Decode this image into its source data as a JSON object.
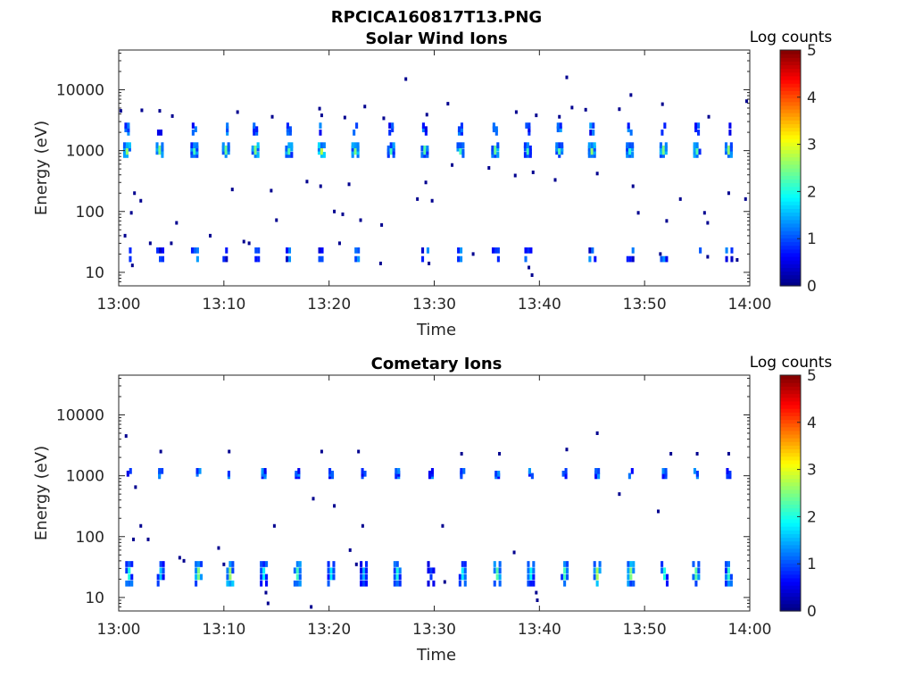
{
  "figure_title": "RPCICA160817T13.PNG",
  "chart_data": [
    {
      "type": "heatmap",
      "title": "Solar Wind Ions",
      "xlabel": "Time",
      "ylabel": "Energy (eV)",
      "x_ticks": [
        "13:00",
        "13:10",
        "13:20",
        "13:30",
        "13:40",
        "13:50",
        "14:00"
      ],
      "x_range_minutes": [
        0,
        60
      ],
      "y_scale": "log",
      "y_ticks": [
        10,
        100,
        1000,
        10000
      ],
      "y_tick_labels": [
        "10",
        "100",
        "1000",
        "10000"
      ],
      "y_range": [
        6,
        45000
      ],
      "grid": false,
      "colorbar": {
        "label": "Log counts",
        "ticks": [
          0,
          1,
          2,
          3,
          4,
          5
        ],
        "range": [
          0,
          5
        ],
        "colormap": "jet"
      },
      "bursts_minutes": [
        0.8,
        3.9,
        7.2,
        10.2,
        13.0,
        16.2,
        19.3,
        22.5,
        25.9,
        29.1,
        32.5,
        35.8,
        38.9,
        41.9,
        45.0,
        48.6,
        51.8,
        55.0,
        58.0
      ],
      "peak_log_counts": [
        2.6,
        2.5,
        2.2,
        2.4,
        2.5,
        2.3,
        2.8,
        2.5,
        2.2,
        2.3,
        2.2,
        2.4,
        2.2,
        2.3,
        2.6,
        2.1,
        2.5,
        2.3,
        2.6
      ],
      "main_energy_band_eV": [
        800,
        1300
      ],
      "upper_energy_band_eV": [
        1800,
        2800
      ],
      "low_energy_band_eV": [
        15,
        35
      ],
      "scattered_points": [
        [
          0.2,
          4500
        ],
        [
          2.2,
          4600
        ],
        [
          3.9,
          4500
        ],
        [
          5.1,
          3700
        ],
        [
          11.3,
          4300
        ],
        [
          14.6,
          3600
        ],
        [
          19.1,
          4900
        ],
        [
          19.3,
          3800
        ],
        [
          21.5,
          3500
        ],
        [
          23.4,
          5300
        ],
        [
          25.2,
          3400
        ],
        [
          27.3,
          15000
        ],
        [
          29.3,
          3900
        ],
        [
          31.3,
          5900
        ],
        [
          37.8,
          4300
        ],
        [
          39.7,
          3800
        ],
        [
          41.9,
          3600
        ],
        [
          42.6,
          16000
        ],
        [
          43.1,
          5100
        ],
        [
          44.4,
          4700
        ],
        [
          47.6,
          4800
        ],
        [
          48.7,
          8200
        ],
        [
          51.7,
          5800
        ],
        [
          56.1,
          3600
        ],
        [
          59.7,
          6500
        ],
        [
          1.5,
          200
        ],
        [
          2.1,
          150
        ],
        [
          1.2,
          95
        ],
        [
          5.5,
          65
        ],
        [
          10.8,
          230
        ],
        [
          14.5,
          220
        ],
        [
          15.0,
          72
        ],
        [
          17.9,
          310
        ],
        [
          19.2,
          260
        ],
        [
          20.5,
          100
        ],
        [
          21.3,
          90
        ],
        [
          21.9,
          280
        ],
        [
          23.0,
          72
        ],
        [
          25.0,
          60
        ],
        [
          28.4,
          160
        ],
        [
          29.2,
          300
        ],
        [
          29.8,
          150
        ],
        [
          31.7,
          580
        ],
        [
          35.2,
          520
        ],
        [
          37.7,
          390
        ],
        [
          39.4,
          440
        ],
        [
          41.5,
          330
        ],
        [
          45.5,
          420
        ],
        [
          48.9,
          260
        ],
        [
          49.4,
          95
        ],
        [
          52.1,
          70
        ],
        [
          53.4,
          160
        ],
        [
          55.7,
          95
        ],
        [
          56.0,
          65
        ],
        [
          58.0,
          200
        ],
        [
          59.6,
          160
        ],
        [
          0.6,
          40
        ],
        [
          1.3,
          13
        ],
        [
          3.0,
          30
        ],
        [
          5.0,
          30
        ],
        [
          8.7,
          40
        ],
        [
          11.9,
          32
        ],
        [
          12.4,
          30
        ],
        [
          21.0,
          30
        ],
        [
          24.9,
          14
        ],
        [
          29.5,
          14
        ],
        [
          33.7,
          20
        ],
        [
          39.0,
          12
        ],
        [
          39.3,
          9
        ],
        [
          51.5,
          20
        ],
        [
          56.0,
          18
        ],
        [
          58.8,
          16
        ]
      ]
    },
    {
      "type": "heatmap",
      "title": "Cometary Ions",
      "xlabel": "Time",
      "ylabel": "Energy (eV)",
      "x_ticks": [
        "13:00",
        "13:10",
        "13:20",
        "13:30",
        "13:40",
        "13:50",
        "14:00"
      ],
      "x_range_minutes": [
        0,
        60
      ],
      "y_scale": "log",
      "y_ticks": [
        10,
        100,
        1000,
        10000
      ],
      "y_tick_labels": [
        "10",
        "100",
        "1000",
        "10000"
      ],
      "y_range": [
        6,
        45000
      ],
      "grid": false,
      "colorbar": {
        "label": "Log counts",
        "ticks": [
          0,
          1,
          2,
          3,
          4,
          5
        ],
        "range": [
          0,
          5
        ],
        "colormap": "jet"
      },
      "bursts_minutes": [
        1.0,
        4.0,
        7.6,
        10.6,
        13.8,
        17.0,
        20.2,
        23.3,
        26.5,
        29.7,
        32.7,
        36.0,
        39.2,
        42.4,
        45.5,
        48.7,
        51.9,
        54.9,
        58.0
      ],
      "peak_log_counts": [
        2.0,
        1.6,
        2.5,
        2.6,
        1.8,
        2.2,
        1.8,
        1.5,
        2.0,
        0.9,
        1.8,
        2.3,
        1.9,
        2.2,
        2.7,
        2.5,
        2.0,
        2.3,
        2.1
      ],
      "main_energy_band_eV": [
        15,
        40
      ],
      "upper_energy_band_eV": [
        900,
        1300
      ],
      "scattered_points": [
        [
          0.7,
          4500
        ],
        [
          4.0,
          2500
        ],
        [
          10.5,
          2500
        ],
        [
          19.3,
          2500
        ],
        [
          22.8,
          2500
        ],
        [
          32.6,
          2300
        ],
        [
          36.2,
          2300
        ],
        [
          42.6,
          2700
        ],
        [
          45.5,
          5000
        ],
        [
          52.5,
          2300
        ],
        [
          55.0,
          2300
        ],
        [
          58.0,
          2300
        ],
        [
          1.6,
          650
        ],
        [
          1.4,
          90
        ],
        [
          2.1,
          150
        ],
        [
          2.8,
          90
        ],
        [
          9.5,
          65
        ],
        [
          14.8,
          150
        ],
        [
          18.5,
          420
        ],
        [
          20.5,
          320
        ],
        [
          22.0,
          60
        ],
        [
          23.2,
          150
        ],
        [
          30.8,
          150
        ],
        [
          37.6,
          55
        ],
        [
          47.6,
          500
        ],
        [
          51.3,
          260
        ],
        [
          5.8,
          45
        ],
        [
          6.2,
          40
        ],
        [
          10.0,
          35
        ],
        [
          14.0,
          12
        ],
        [
          14.2,
          8
        ],
        [
          18.3,
          7
        ],
        [
          22.6,
          35
        ],
        [
          31.0,
          18
        ],
        [
          39.7,
          12
        ],
        [
          39.8,
          9
        ]
      ]
    }
  ]
}
